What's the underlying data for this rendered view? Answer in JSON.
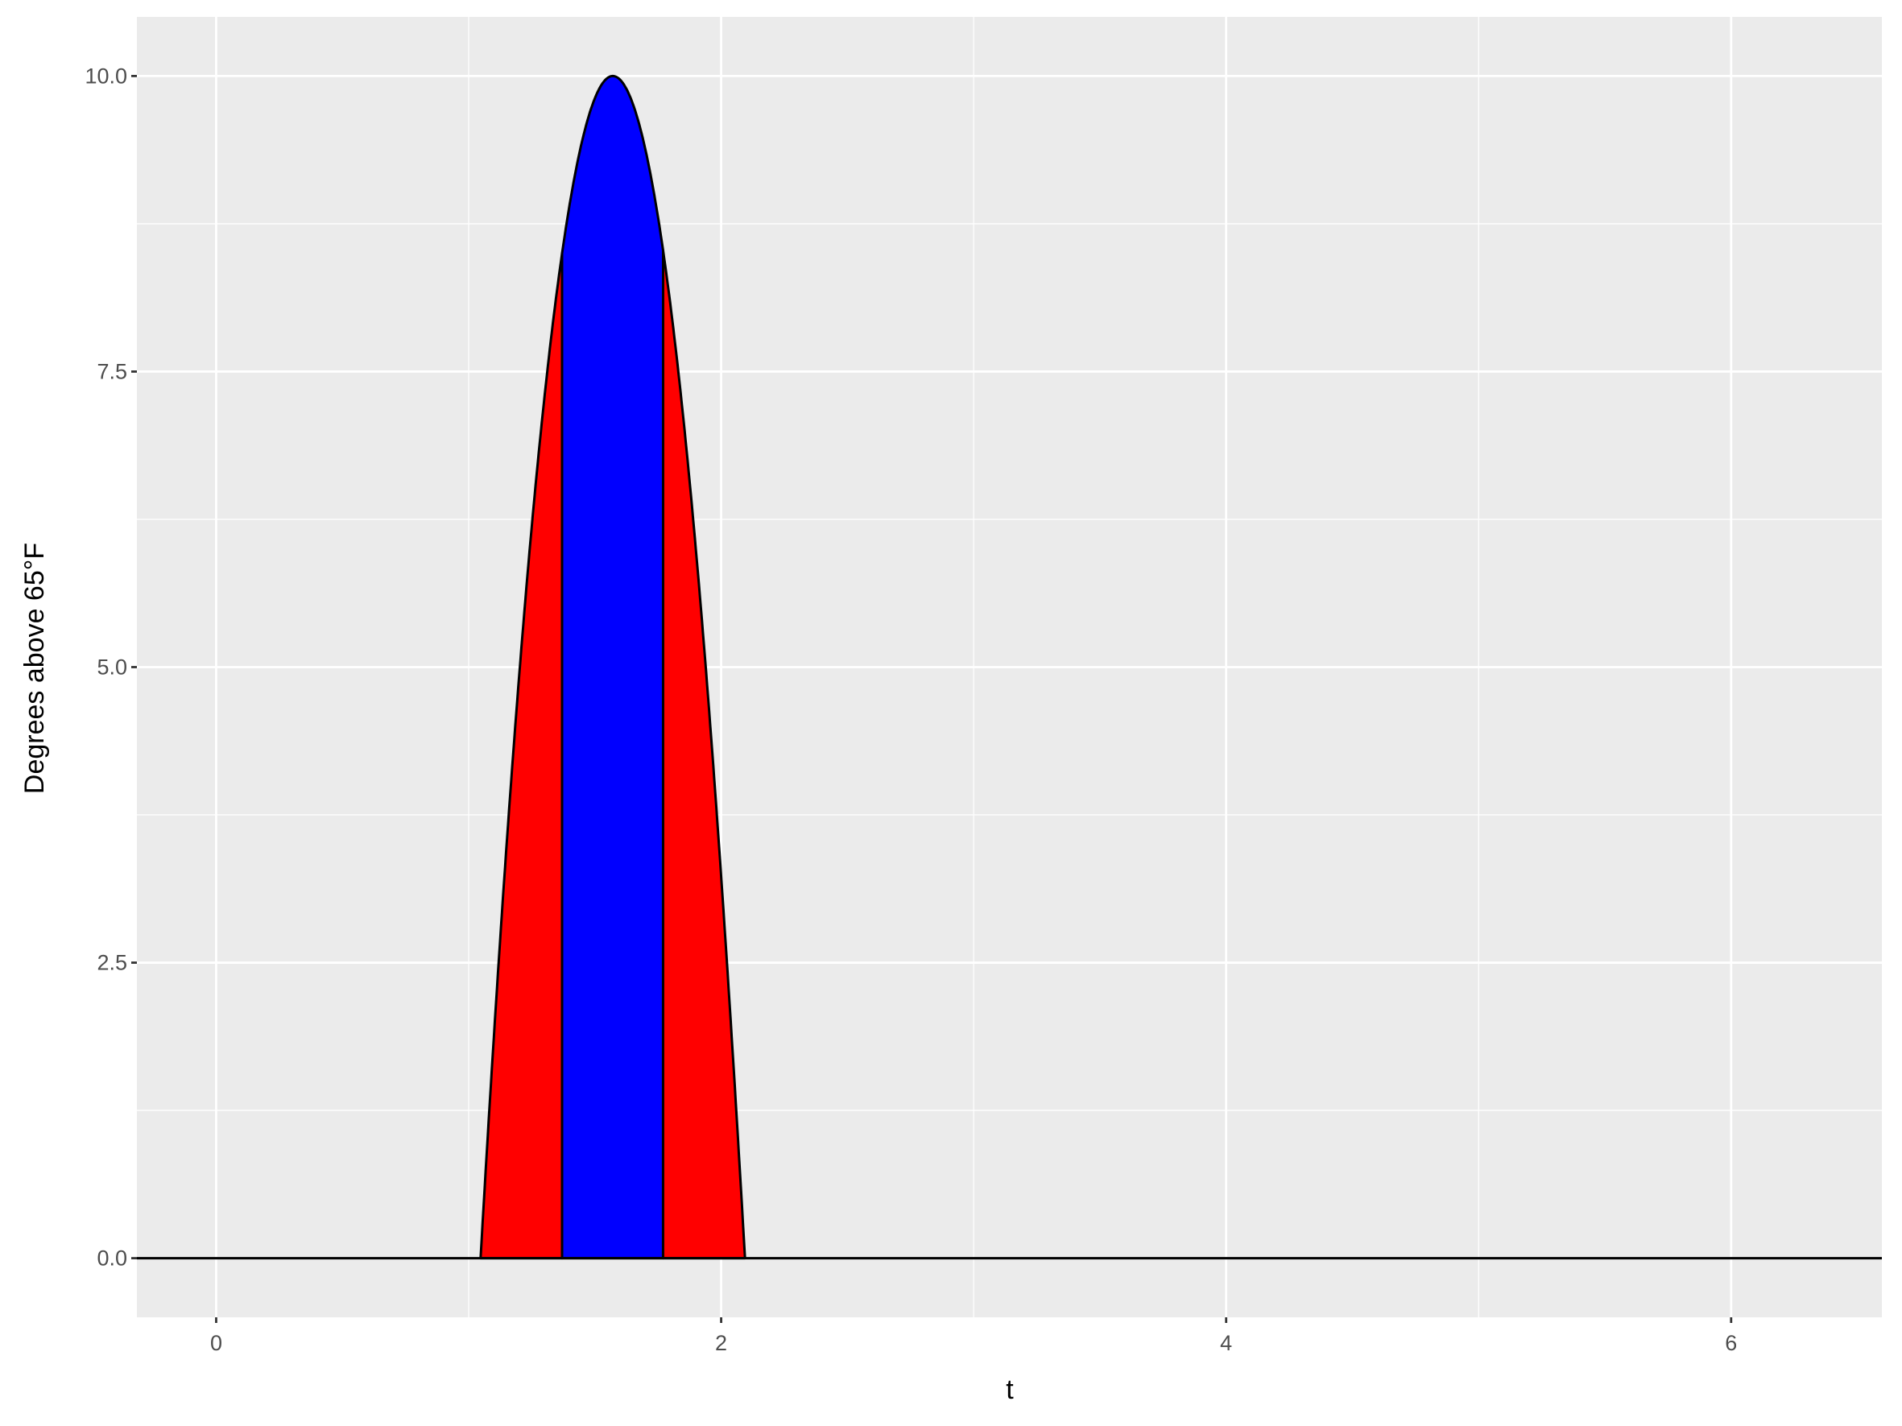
{
  "chart_data": {
    "type": "area",
    "title": "",
    "xlabel": "t",
    "ylabel": "Degrees above 65°F",
    "xlim": [
      -0.314,
      6.597
    ],
    "ylim": [
      -0.5,
      10.5
    ],
    "x_ticks": [
      0,
      2,
      4,
      6
    ],
    "x_tick_labels": [
      "0",
      "2",
      "4",
      "6"
    ],
    "y_ticks": [
      0,
      2.5,
      5,
      7.5,
      10
    ],
    "y_tick_labels": [
      "0.0",
      "2.5",
      "5.0",
      "7.5",
      "10.0"
    ],
    "grid": true,
    "legend": "none",
    "hline_y": 0,
    "series": [
      {
        "x": [
          1.0472,
          1.1,
          1.15,
          1.2,
          1.25,
          1.3,
          1.35,
          1.4,
          1.45,
          1.5,
          1.5708,
          1.6416,
          1.6916,
          1.7416,
          1.7916,
          1.8416,
          1.8916,
          1.9416,
          1.9916,
          2.0416,
          2.0944
        ],
        "y": [
          0,
          1.88,
          3.49,
          4.93,
          6.19,
          7.28,
          8.19,
          8.91,
          9.46,
          9.81,
          10,
          9.81,
          9.46,
          8.91,
          8.19,
          7.28,
          6.19,
          4.93,
          3.49,
          1.88,
          0
        ]
      }
    ],
    "regions": [
      {
        "from": 1.0472,
        "to": 1.37,
        "color": "#FF0000"
      },
      {
        "from": 1.37,
        "to": 1.77,
        "color": "#0000FF"
      },
      {
        "from": 1.77,
        "to": 2.0944,
        "color": "#FF0000"
      }
    ],
    "colors": {
      "panel": "#EBEBEB",
      "grid": "#FFFFFF",
      "outline": "#000000"
    }
  }
}
